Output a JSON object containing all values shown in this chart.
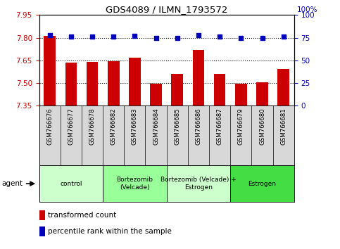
{
  "title": "GDS4089 / ILMN_1793572",
  "samples": [
    "GSM766676",
    "GSM766677",
    "GSM766678",
    "GSM766682",
    "GSM766683",
    "GSM766684",
    "GSM766685",
    "GSM766686",
    "GSM766687",
    "GSM766679",
    "GSM766680",
    "GSM766681"
  ],
  "bar_values": [
    7.81,
    7.635,
    7.64,
    7.645,
    7.67,
    7.495,
    7.56,
    7.72,
    7.56,
    7.495,
    7.505,
    7.595
  ],
  "dot_values": [
    78,
    76,
    76,
    76,
    77,
    75,
    75,
    78,
    76,
    75,
    75,
    76
  ],
  "bar_color": "#cc0000",
  "dot_color": "#0000bb",
  "ylim_left": [
    7.35,
    7.95
  ],
  "ylim_right": [
    0,
    100
  ],
  "yticks_left": [
    7.35,
    7.5,
    7.65,
    7.8,
    7.95
  ],
  "yticks_right": [
    0,
    25,
    50,
    75,
    100
  ],
  "grid_values": [
    7.5,
    7.65,
    7.8
  ],
  "groups": [
    {
      "label": "control",
      "start": 0,
      "end": 3,
      "color": "#ccffcc"
    },
    {
      "label": "Bortezomib\n(Velcade)",
      "start": 3,
      "end": 6,
      "color": "#99ff99"
    },
    {
      "label": "Bortezomib (Velcade) +\nEstrogen",
      "start": 6,
      "end": 9,
      "color": "#ccffcc"
    },
    {
      "label": "Estrogen",
      "start": 9,
      "end": 12,
      "color": "#44dd44"
    }
  ],
  "agent_label": "agent",
  "legend_bar_label": "transformed count",
  "legend_dot_label": "percentile rank within the sample",
  "left_color": "#cc0000",
  "right_color": "#0000bb"
}
